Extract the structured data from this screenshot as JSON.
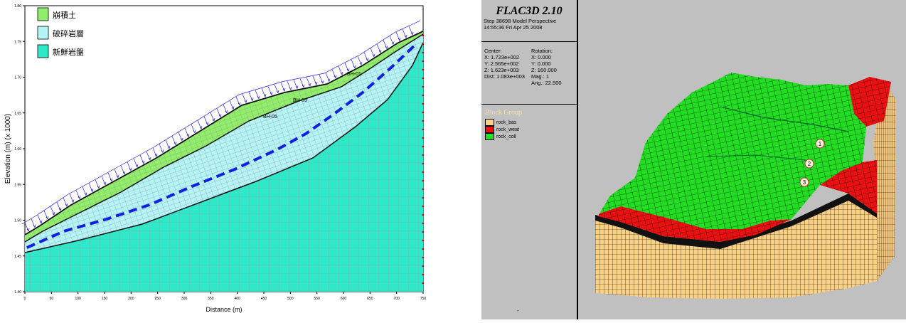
{
  "left_figure": {
    "xlabel": "Distance (m)",
    "ylabel": "Elevation (m) (x 1000)",
    "x_ticks": [
      "0",
      "50",
      "100",
      "150",
      "200",
      "250",
      "300",
      "350",
      "400",
      "450",
      "500",
      "550",
      "600",
      "650",
      "700",
      "750"
    ],
    "y_ticks": [
      "1.40",
      "1.45",
      "1.50",
      "1.55",
      "1.60",
      "1.65",
      "1.70",
      "1.75",
      "1.80"
    ],
    "legend": [
      {
        "label": "崩積土",
        "color": "#90ee6a"
      },
      {
        "label": "破碎岩層",
        "color": "#b4f4f6"
      },
      {
        "label": "新鮮岩盤",
        "color": "#2ee8c8"
      }
    ],
    "boreholes": [
      "BH-01",
      "BH-03",
      "BH-05"
    ]
  },
  "right_figure": {
    "title": "FLAC3D 2.10",
    "step_line": "Step 38698  Model Perspective",
    "time_line": "14:55:36 Fri Apr 25 2008",
    "center_label": "Center:",
    "center_x": "X: 1.723e+002",
    "center_y": "Y: 2.565e+002",
    "center_z": "Z: 1.623e+003",
    "dist": "Dist: 1.083e+003",
    "rotation_label": "Rotation:",
    "rot_x": "X:   0.000",
    "rot_y": "Y:   0.000",
    "rot_z": "Z: 160.000",
    "mag": "Mag.:      1",
    "ang": "Ang.:  22.500",
    "block_group_title": "Block Group",
    "block_groups": [
      {
        "label": "rock_bas",
        "color": "#f8d088"
      },
      {
        "label": "rock_weat",
        "color": "#e81010"
      },
      {
        "label": "rock_coll",
        "color": "#22dd22"
      }
    ],
    "markers": [
      "1",
      "2",
      "3"
    ],
    "bottom_mark": "-"
  }
}
